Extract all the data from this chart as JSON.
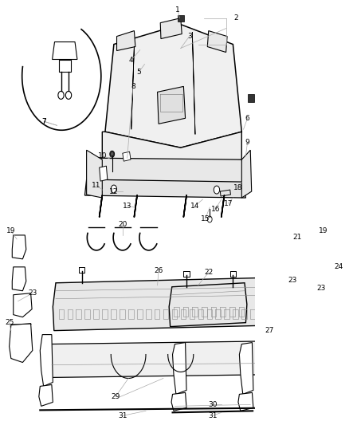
{
  "bg_color": "#ffffff",
  "fig_width": 4.38,
  "fig_height": 5.33,
  "dpi": 100,
  "line_color": "#000000",
  "label_fontsize": 6.5,
  "gray": "#888888",
  "leader_color": "#aaaaaa"
}
